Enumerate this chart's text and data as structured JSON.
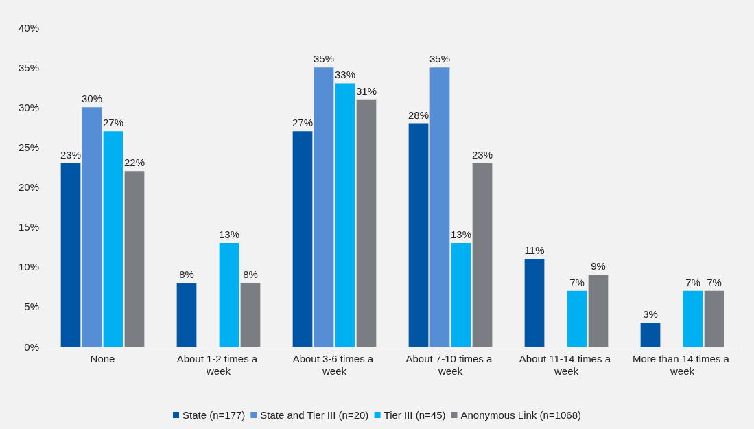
{
  "chart_data": {
    "type": "bar",
    "categories": [
      "None",
      "About 1-2 times a week",
      "About 3-6 times a week",
      "About 7-10 times a week",
      "About 11-14 times a week",
      "More than 14 times a week"
    ],
    "series": [
      {
        "name": "State (n=177)",
        "color": "#0056a4",
        "values": [
          23,
          8,
          27,
          28,
          11,
          3
        ],
        "value_labels": [
          "23%",
          "8%",
          "27%",
          "28%",
          "11%",
          "3%"
        ]
      },
      {
        "name": "State and Tier III (n=20)",
        "color": "#558ed5",
        "values": [
          30,
          null,
          35,
          35,
          null,
          null
        ],
        "value_labels": [
          "30%",
          null,
          "35%",
          "35%",
          null,
          null
        ]
      },
      {
        "name": "Tier III (n=45)",
        "color": "#00b0f0",
        "values": [
          27,
          13,
          33,
          13,
          7,
          7
        ],
        "value_labels": [
          "27%",
          "13%",
          "33%",
          "13%",
          "7%",
          "7%"
        ]
      },
      {
        "name": "Anonymous Link (n=1068)",
        "color": "#7a7e82",
        "values": [
          22,
          8,
          31,
          23,
          9,
          7
        ],
        "value_labels": [
          "22%",
          "8%",
          "31%",
          "23%",
          "9%",
          "7%"
        ]
      }
    ],
    "ylim": [
      0,
      40
    ],
    "yticks": [
      {
        "value": 0,
        "label": "0%"
      },
      {
        "value": 5,
        "label": "5%"
      },
      {
        "value": 10,
        "label": "10%"
      },
      {
        "value": 15,
        "label": "15%"
      },
      {
        "value": 20,
        "label": "20%"
      },
      {
        "value": 25,
        "label": "25%"
      },
      {
        "value": 30,
        "label": "30%"
      },
      {
        "value": 35,
        "label": "35%"
      },
      {
        "value": 40,
        "label": "40%"
      }
    ],
    "grid": false,
    "legend": "bottom"
  }
}
